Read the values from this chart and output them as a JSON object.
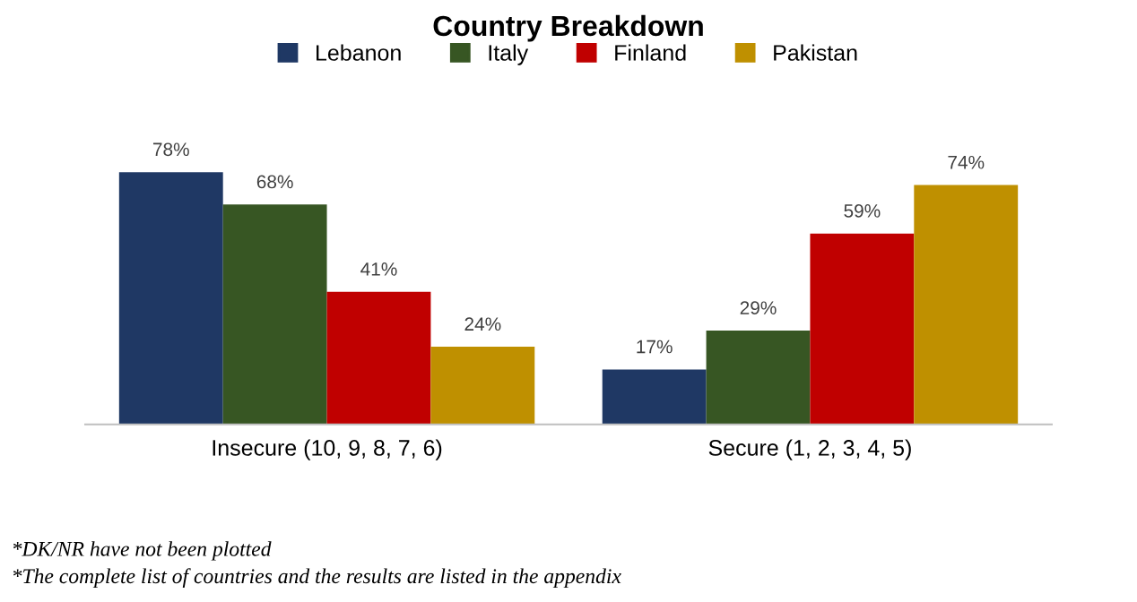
{
  "chart_data": {
    "type": "bar",
    "title": "Country Breakdown",
    "categories": [
      "Insecure (10, 9, 8, 7, 6)",
      "Secure (1, 2, 3, 4, 5)"
    ],
    "series": [
      {
        "name": "Lebanon",
        "color": "#1f3864",
        "values": [
          78,
          17
        ],
        "value_labels": [
          "78%",
          "17%"
        ]
      },
      {
        "name": "Italy",
        "color": "#375623",
        "values": [
          68,
          29
        ],
        "value_labels": [
          "68%",
          "29%"
        ]
      },
      {
        "name": "Finland",
        "color": "#c00000",
        "values": [
          41,
          59
        ],
        "value_labels": [
          "41%",
          "59%"
        ]
      },
      {
        "name": "Pakistan",
        "color": "#bf9000",
        "values": [
          24,
          74
        ],
        "value_labels": [
          "24%",
          "74%"
        ]
      }
    ],
    "legend": "top",
    "grid": false,
    "annotations": [
      "*DK/NR have not been plotted",
      "*The complete list of countries and the results are listed in the appendix"
    ]
  }
}
